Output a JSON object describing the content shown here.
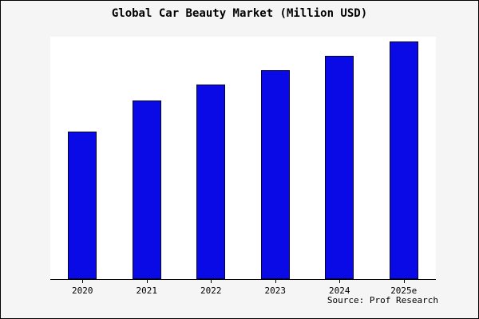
{
  "chart_data": {
    "type": "bar",
    "title": "Global Car Beauty Market (Million USD)",
    "categories": [
      "2020",
      "2021",
      "2022",
      "2023",
      "2024",
      "2025e"
    ],
    "values": [
      62,
      75,
      82,
      88,
      94,
      100
    ],
    "xlabel": "",
    "ylabel": "",
    "ylim": [
      0,
      102
    ],
    "grid": false,
    "legend": false,
    "y_axis_labels_visible": false,
    "bar_color": "#0a0ae6",
    "bar_border_color": "#000033"
  },
  "source": {
    "label": "Source: Prof Research"
  },
  "colors": {
    "outer_background": "#f5f5f5",
    "plot_background": "#ffffff",
    "axis": "#000000",
    "text": "#000000"
  }
}
